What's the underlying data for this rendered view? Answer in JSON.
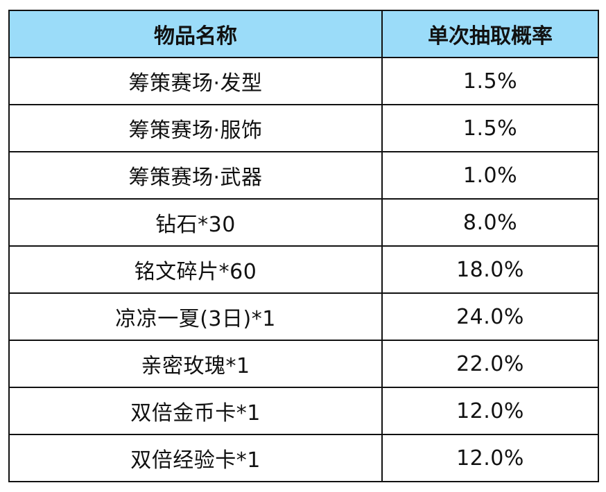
{
  "table": {
    "headers": {
      "name": "物品名称",
      "probability": "单次抽取概率"
    },
    "rows": [
      {
        "name": "筹策赛场·发型",
        "probability": "1.5%"
      },
      {
        "name": "筹策赛场·服饰",
        "probability": "1.5%"
      },
      {
        "name": "筹策赛场·武器",
        "probability": "1.0%"
      },
      {
        "name": "钻石*30",
        "probability": "8.0%"
      },
      {
        "name": "铭文碎片*60",
        "probability": "18.0%"
      },
      {
        "name": "凉凉一夏(3日)*1",
        "probability": "24.0%"
      },
      {
        "name": "亲密玫瑰*1",
        "probability": "22.0%"
      },
      {
        "name": "双倍金币卡*1",
        "probability": "12.0%"
      },
      {
        "name": "双倍经验卡*1",
        "probability": "12.0%"
      }
    ]
  },
  "colors": {
    "header_background": "#9bdcf9",
    "border": "#111111",
    "text": "#111111"
  }
}
